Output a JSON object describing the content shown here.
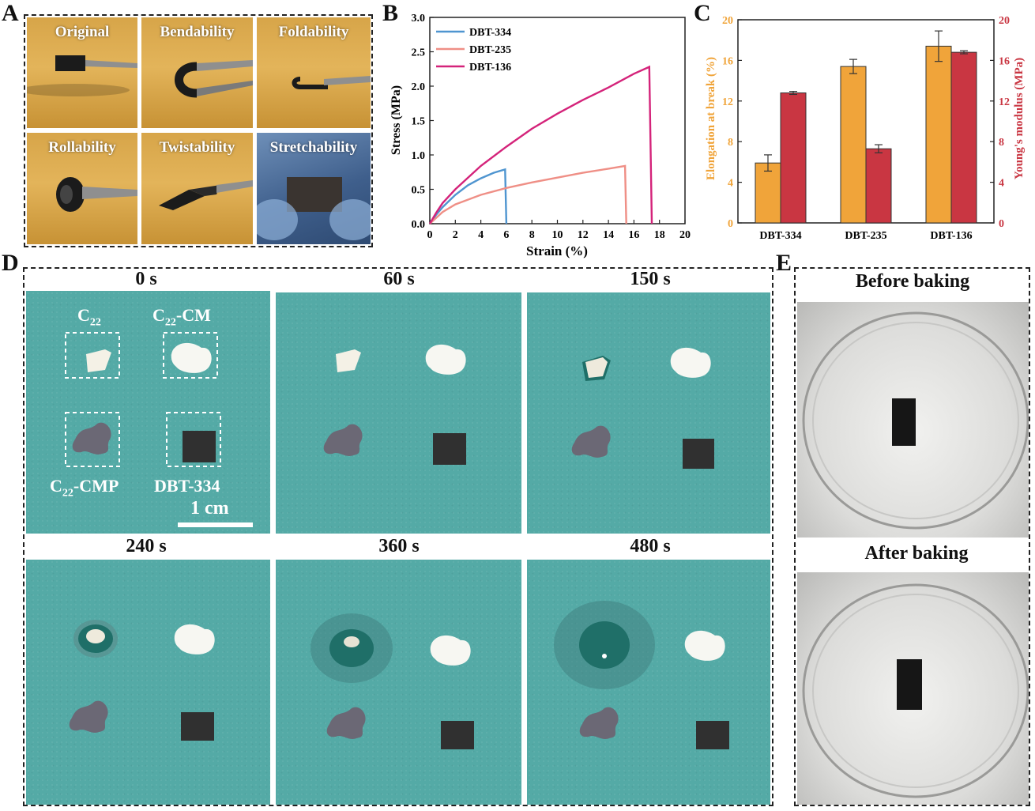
{
  "panels": {
    "a": "A",
    "b": "B",
    "c": "C",
    "d": "D",
    "e": "E"
  },
  "panel_a": {
    "tiles": [
      "Original",
      "Bendability",
      "Foldability",
      "Rollability",
      "Twistability",
      "Stretchability"
    ]
  },
  "panel_d": {
    "times": [
      "0 s",
      "60 s",
      "150 s",
      "240 s",
      "360 s",
      "480 s"
    ],
    "sample_labels": {
      "c22": {
        "base": "C",
        "sub": "22"
      },
      "c22cm": {
        "base": "C",
        "sub": "22",
        "suffix": "-CM"
      },
      "c22cmp": {
        "base": "C",
        "sub": "22",
        "suffix": "-CMP"
      },
      "dbt": "DBT-334"
    },
    "scale_bar": "1 cm"
  },
  "panel_e": {
    "before": "Before baking",
    "after": "After baking"
  },
  "colors": {
    "teal": "#54aaa6",
    "orange": "#f0a43a",
    "red": "#c93642",
    "blue": "#4f95d0",
    "salmon": "#ef8f86",
    "magenta": "#d4237a"
  },
  "chart_data": [
    {
      "type": "line",
      "title": "",
      "xlabel": "Strain (%)",
      "ylabel": "Stress (MPa)",
      "xlim": [
        0,
        20
      ],
      "ylim": [
        0,
        3.0
      ],
      "xticks": [
        "0",
        "2",
        "4",
        "6",
        "8",
        "10",
        "12",
        "14",
        "16",
        "18",
        "20"
      ],
      "yticks": [
        "0.0",
        "0.5",
        "1.0",
        "1.5",
        "2.0",
        "2.5",
        "3.0"
      ],
      "legend": "top-left",
      "series": [
        {
          "name": "DBT-334",
          "color": "#4f95d0",
          "x": [
            0,
            0.5,
            1,
            2,
            3,
            4,
            5,
            5.9,
            6.0
          ],
          "y": [
            0,
            0.13,
            0.24,
            0.42,
            0.56,
            0.66,
            0.74,
            0.79,
            0
          ]
        },
        {
          "name": "DBT-235",
          "color": "#ef8f86",
          "x": [
            0,
            1,
            2,
            4,
            6,
            8,
            10,
            12,
            14,
            15.3,
            15.4
          ],
          "y": [
            0,
            0.17,
            0.28,
            0.42,
            0.52,
            0.6,
            0.67,
            0.74,
            0.8,
            0.84,
            0
          ]
        },
        {
          "name": "DBT-136",
          "color": "#d4237a",
          "x": [
            0,
            0.5,
            1,
            2,
            4,
            6,
            8,
            10,
            12,
            14,
            16,
            17.2,
            17.4
          ],
          "y": [
            0,
            0.16,
            0.3,
            0.5,
            0.84,
            1.12,
            1.38,
            1.6,
            1.8,
            1.98,
            2.18,
            2.28,
            0
          ]
        }
      ]
    },
    {
      "type": "bar",
      "title": "",
      "categories": [
        "DBT-334",
        "DBT-235",
        "DBT-136"
      ],
      "series": [
        {
          "name": "Elongation at break (%)",
          "axis": "left",
          "color": "#f0a43a",
          "values": [
            5.9,
            15.4,
            17.4
          ],
          "errors": [
            0.8,
            0.7,
            1.5
          ]
        },
        {
          "name": "Young's modulus (MPa)",
          "axis": "right",
          "color": "#c93642",
          "values": [
            12.8,
            7.3,
            16.8
          ],
          "errors": [
            0.15,
            0.4,
            0.15
          ]
        }
      ],
      "ylabel": "Elongation at break (%)",
      "y2label": "Young's modulus (MPa)",
      "ylim": [
        0,
        20
      ],
      "y2lim": [
        0,
        20
      ],
      "yticks": [
        "0",
        "4",
        "8",
        "12",
        "16",
        "20"
      ],
      "y2ticks": [
        "0",
        "4",
        "8",
        "12",
        "16",
        "20"
      ]
    }
  ]
}
